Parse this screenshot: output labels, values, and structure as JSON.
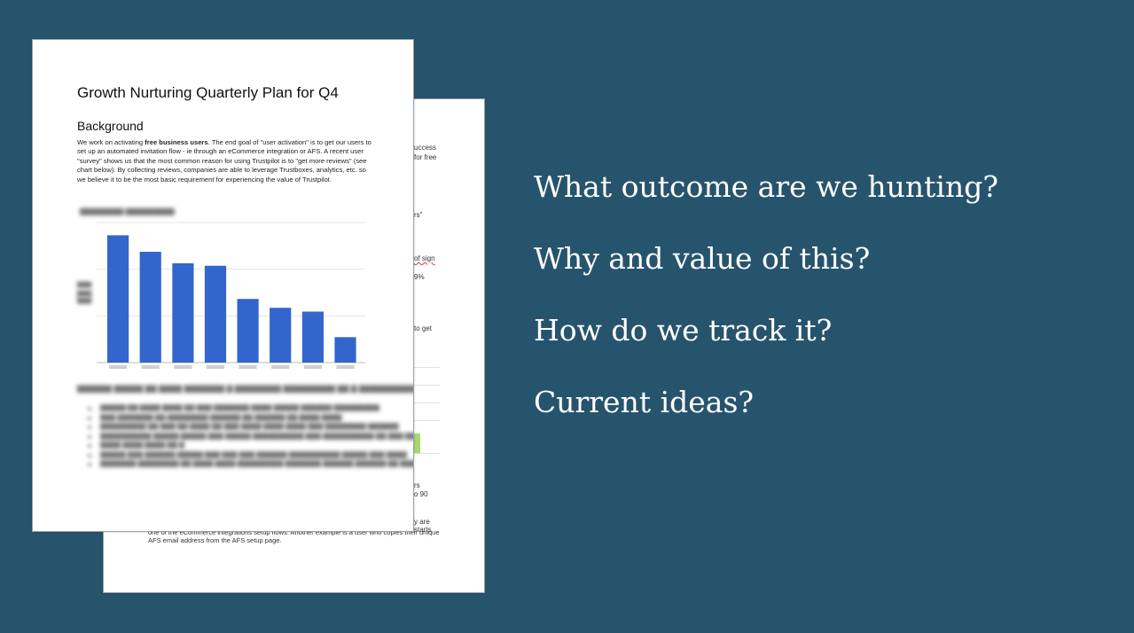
{
  "back_page": {
    "fragments": [
      "uccess",
      "for free",
      "rs\"",
      "of sign",
      "9%",
      "to get",
      "rs",
      "o 90",
      "y are",
      "starts"
    ],
    "bottom_text": "one of the eCommerce integrations setup flows. Another example is a user who copies their unique AFS email address from the AFS setup page."
  },
  "front_page": {
    "title": "Growth Nurturing Quarterly Plan for Q4",
    "heading": "Background",
    "para_pre": "We work on activating ",
    "para_bold": "free business users",
    "para_post": ". The end goal of \"user activation\" is to get our users to set up an automated invitation flow - ie through an eCommerce integration or AFS. A recent user \"survey\" shows us that the most common reason for using Trustpilot is to \"get more reviews\" (see chart below). By collecting reviews, companies are able to leverage Trustboxes, analytics, etc. so we believe it to be the most basic requirement for experiencing the value of Trustpilot."
  },
  "chart_data": {
    "type": "bar",
    "categories": [
      "",
      "",
      "",
      "",
      "",
      "",
      "",
      ""
    ],
    "values": [
      100,
      87,
      78,
      76,
      50,
      43,
      40,
      20
    ],
    "ylim": [
      0,
      110
    ],
    "grid": true,
    "bar_color": "#3366cc"
  },
  "questions": [
    "What outcome are we hunting?",
    "Why and value of this?",
    "How do we track it?",
    "Current ideas?"
  ],
  "colors": {
    "background": "#27546d",
    "question_text": "#ffffff"
  }
}
